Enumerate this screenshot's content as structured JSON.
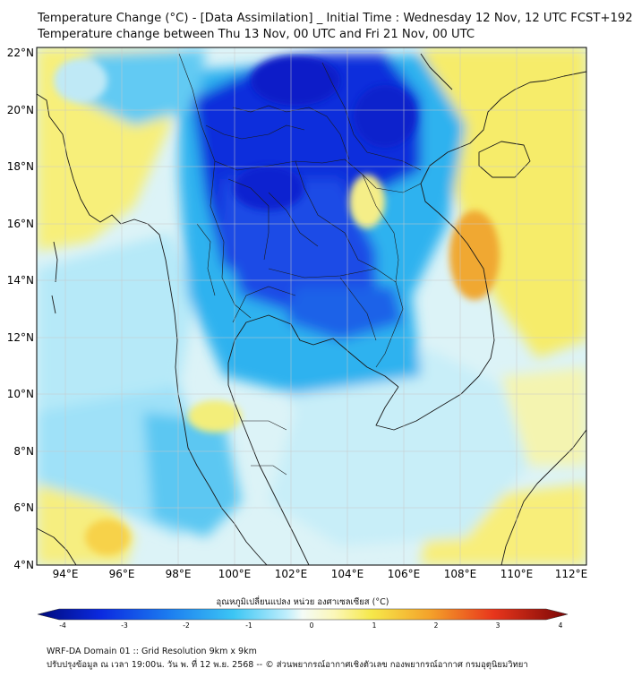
{
  "title": {
    "line1": "Temperature Change (°C) - [Data Assimilation] _ Initial Time : Wednesday 12 Nov, 12 UTC FCST+192",
    "line2": "Temperature change between Thu 13 Nov, 00 UTC and Fri 21 Nov, 00 UTC"
  },
  "map": {
    "lat_labels": [
      "22°N",
      "20°N",
      "18°N",
      "16°N",
      "14°N",
      "12°N",
      "10°N",
      "8°N",
      "6°N",
      "4°N"
    ],
    "lon_labels": [
      "94°E",
      "96°E",
      "98°E",
      "100°E",
      "102°E",
      "104°E",
      "106°E",
      "108°E",
      "110°E",
      "112°E"
    ],
    "lat_range": [
      4,
      22
    ],
    "lon_range": [
      93,
      112.5
    ]
  },
  "colorbar": {
    "label": "อุณหภูมิเปลี่ยนแปลง หน่วย องศาเซลเซียส (°C)",
    "ticks": [
      "-4",
      "-3",
      "-2",
      "-1",
      "0",
      "1",
      "2",
      "3",
      "4"
    ],
    "range": [
      -4,
      4
    ]
  },
  "footer": {
    "line1": "WRF-DA Domain 01 :: Grid Resolution 9km x 9km",
    "line2": "ปรับปรุงข้อมูล ณ เวลา 19:00น. วัน พ. ที่ 12 พ.ย. 2568 -- © ส่วนพยากรณ์อากาศเชิงตัวเลข กองพยากรณ์อากาศ กรมอุตุนิยมวิทยา"
  },
  "colors": {
    "strong_cooling": "#0a2ad8",
    "cooling": "#2fb6f0",
    "light_cooling": "#a8e4fb",
    "neutral": "#e8f7ee",
    "warming": "#f6ee62",
    "strong_warming": "#f2a62a"
  }
}
